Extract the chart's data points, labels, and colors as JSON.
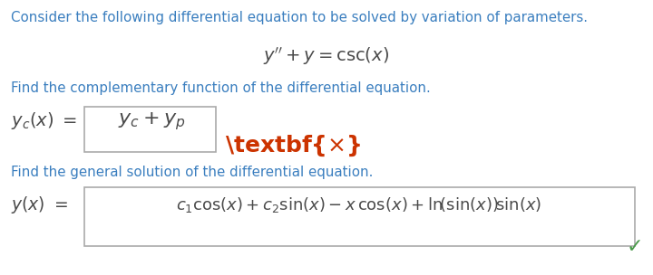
{
  "bg_color": "#ffffff",
  "teal": "#3a7ebf",
  "dark": "#4a4a4a",
  "eq_color": "#8B0000",
  "red_x": "#cc3300",
  "green_check": "#4a9a4a",
  "gray_box": "#888888",
  "line1": "Consider the following differential equation to be solved by variation of parameters.",
  "line2_italic": "y′′ + y = csc(x)",
  "line3": "Find the complementary function of the differential equation.",
  "line5": "Find the general solution of the differential equation.",
  "fontsize_body": 11.5,
  "fontsize_eq": 13.5,
  "fontsize_math_large": 15,
  "fontsize_math_med": 13
}
